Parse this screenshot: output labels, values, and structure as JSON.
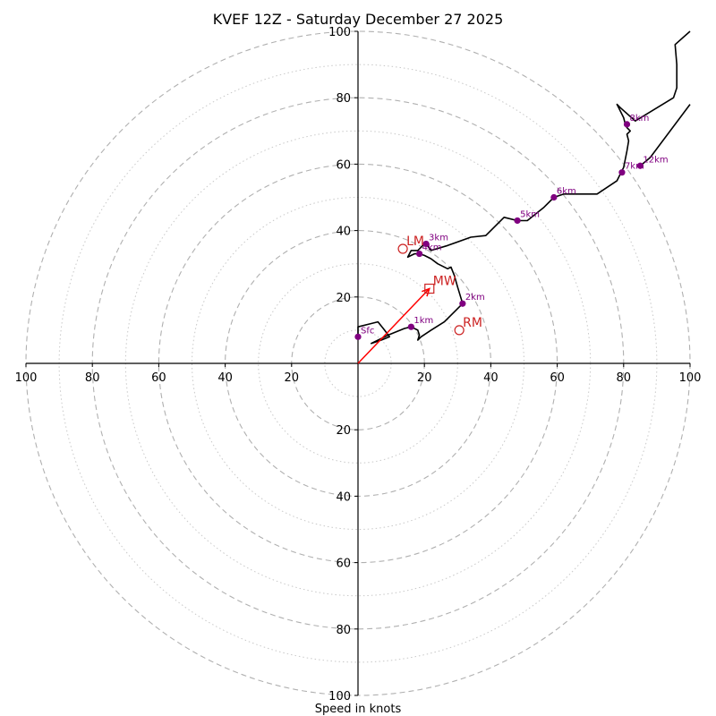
{
  "chart_data": {
    "type": "hodograph",
    "title": "KVEF 12Z - Saturday December 27 2025",
    "xlabel": "Speed in knots",
    "xlim": [
      -100,
      100
    ],
    "ylim": [
      -100,
      100
    ],
    "rings_dashed": [
      20,
      40,
      60,
      80,
      100
    ],
    "rings_dotted": [
      10,
      30,
      50,
      70,
      90
    ],
    "x_ticks": [
      {
        "value": -100,
        "label": "100"
      },
      {
        "value": -80,
        "label": "80"
      },
      {
        "value": -60,
        "label": "60"
      },
      {
        "value": -40,
        "label": "40"
      },
      {
        "value": -20,
        "label": "20"
      },
      {
        "value": 20,
        "label": "20"
      },
      {
        "value": 40,
        "label": "40"
      },
      {
        "value": 60,
        "label": "60"
      },
      {
        "value": 80,
        "label": "80"
      },
      {
        "value": 100,
        "label": "100"
      }
    ],
    "y_ticks": [
      {
        "value": 100,
        "label": "100"
      },
      {
        "value": 80,
        "label": "80"
      },
      {
        "value": 60,
        "label": "60"
      },
      {
        "value": 40,
        "label": "40"
      },
      {
        "value": 20,
        "label": "20"
      },
      {
        "value": -20,
        "label": "20"
      },
      {
        "value": -40,
        "label": "40"
      },
      {
        "value": -60,
        "label": "60"
      },
      {
        "value": -80,
        "label": "80"
      },
      {
        "value": -100,
        "label": "100"
      }
    ],
    "series": [
      {
        "name": "hodograph",
        "color": "#000000",
        "points": [
          [
            0,
            8.5
          ],
          [
            0,
            11
          ],
          [
            4,
            12
          ],
          [
            6,
            12.5
          ],
          [
            8,
            10
          ],
          [
            9.5,
            8
          ],
          [
            7,
            7
          ],
          [
            4,
            6
          ],
          [
            7,
            7.5
          ],
          [
            9,
            8.5
          ],
          [
            14,
            10.5
          ],
          [
            16,
            11
          ],
          [
            18,
            10
          ],
          [
            18.5,
            8.5
          ],
          [
            18,
            7
          ],
          [
            19,
            8
          ],
          [
            22,
            10
          ],
          [
            26,
            12.5
          ],
          [
            28,
            14.5
          ],
          [
            31.5,
            18
          ],
          [
            30,
            23
          ],
          [
            29,
            26.5
          ],
          [
            28,
            29
          ],
          [
            27,
            28.5
          ],
          [
            24,
            30
          ],
          [
            22,
            31.5
          ],
          [
            20,
            32.5
          ],
          [
            18.5,
            33
          ],
          [
            17,
            33
          ],
          [
            16,
            32.5
          ],
          [
            15,
            32
          ],
          [
            16,
            34
          ],
          [
            18,
            34
          ],
          [
            20,
            36
          ],
          [
            20.5,
            36
          ],
          [
            22,
            34
          ],
          [
            27,
            35.5
          ],
          [
            34,
            38
          ],
          [
            38.5,
            38.5
          ],
          [
            44,
            44
          ],
          [
            48,
            43
          ],
          [
            51,
            43
          ],
          [
            56,
            47
          ],
          [
            59,
            50
          ],
          [
            62,
            51
          ],
          [
            72,
            51
          ],
          [
            78,
            55
          ],
          [
            79.5,
            58
          ],
          [
            80,
            59
          ],
          [
            81,
            64
          ],
          [
            81.5,
            67
          ],
          [
            81,
            69
          ],
          [
            82,
            70
          ],
          [
            81,
            71
          ],
          [
            80.5,
            72
          ],
          [
            80,
            74
          ],
          [
            78,
            78
          ],
          [
            79,
            77
          ],
          [
            83.5,
            73
          ],
          [
            95,
            80
          ],
          [
            96,
            83
          ],
          [
            96,
            90
          ],
          [
            95.5,
            96
          ],
          [
            100,
            100
          ]
        ]
      },
      {
        "name": "upper-segment",
        "color": "#000000",
        "points": [
          [
            85,
            59.5
          ],
          [
            88,
            62
          ],
          [
            100,
            78
          ]
        ]
      }
    ],
    "height_markers": [
      {
        "label": "Sfc",
        "u": 0,
        "v": 8
      },
      {
        "label": "1km",
        "u": 16,
        "v": 11
      },
      {
        "label": "2km",
        "u": 31.5,
        "v": 18
      },
      {
        "label": "3km",
        "u": 20.5,
        "v": 36
      },
      {
        "label": "4km",
        "u": 18.5,
        "v": 33
      },
      {
        "label": "5km",
        "u": 48,
        "v": 43
      },
      {
        "label": "6km",
        "u": 59,
        "v": 50
      },
      {
        "label": "7km",
        "u": 79.5,
        "v": 57.5
      },
      {
        "label": "8km",
        "u": 81,
        "v": 72
      },
      {
        "label": "12km",
        "u": 85,
        "v": 59.5
      }
    ],
    "storm_motion": [
      {
        "label": "LM",
        "u": 13.5,
        "v": 34.5,
        "marker": "circle"
      },
      {
        "label": "MW",
        "u": 21.5,
        "v": 22.5,
        "marker": "square"
      },
      {
        "label": "RM",
        "u": 30.5,
        "v": 10,
        "marker": "circle"
      }
    ],
    "shear_vector": {
      "from": [
        0,
        0
      ],
      "to": [
        21.5,
        22.5
      ],
      "color": "#ff0000"
    }
  }
}
